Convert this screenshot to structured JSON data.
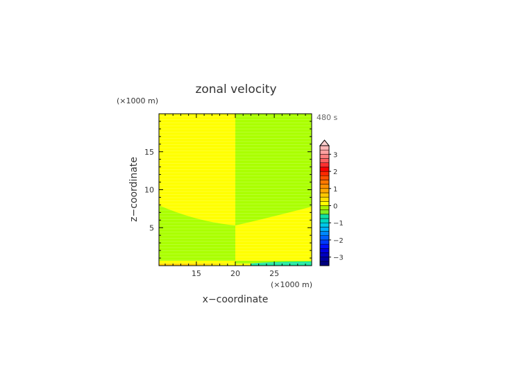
{
  "chart_data": {
    "type": "heatmap",
    "title": "zonal velocity",
    "time_label": "480 s",
    "xlabel": "x−coordinate",
    "ylabel": "z−coordinate",
    "x_unit": "(×1000 m)",
    "y_unit": "(×1000 m)",
    "xlim": [
      10.2,
      29.8
    ],
    "ylim": [
      0,
      20
    ],
    "x_ticks": [
      15,
      20,
      25
    ],
    "y_ticks": [
      5,
      10,
      15
    ],
    "colorbar": {
      "levels": [
        -3.5,
        -3.25,
        -3,
        -2.75,
        -2.5,
        -2.25,
        -2,
        -1.75,
        -1.5,
        -1.25,
        -1,
        -0.75,
        -0.5,
        -0.25,
        0,
        0.25,
        0.5,
        0.75,
        1,
        1.25,
        1.5,
        1.75,
        2,
        2.25,
        2.5,
        2.75,
        3,
        3.25,
        3.5
      ],
      "colors": [
        "#000080",
        "#0000a0",
        "#0000c0",
        "#0000e0",
        "#0010ff",
        "#0038ff",
        "#0060ff",
        "#0088ff",
        "#00b0ff",
        "#00c8e8",
        "#00d8c0",
        "#10e0a0",
        "#80ee20",
        "#a8f000",
        "#ffff00",
        "#ffe000",
        "#ffc800",
        "#ffa800",
        "#ff9000",
        "#ff7800",
        "#ff5000",
        "#ff2800",
        "#ff0000",
        "#ff3030",
        "#ff6060",
        "#ff8080",
        "#ffa0a0",
        "#ffb8b8"
      ],
      "tick_labels": [
        "3",
        "2",
        "1",
        "0",
        "−1",
        "−2",
        "−3"
      ],
      "tick_values": [
        3,
        2,
        1,
        0,
        -1,
        -2,
        -3
      ],
      "extend": "max"
    },
    "regions": {
      "positive_color": "#ffff00",
      "negative_color": "#aaff00",
      "bottom_neg_color": "#20e8a0",
      "bottom_pos_color": "#ffd000"
    }
  }
}
